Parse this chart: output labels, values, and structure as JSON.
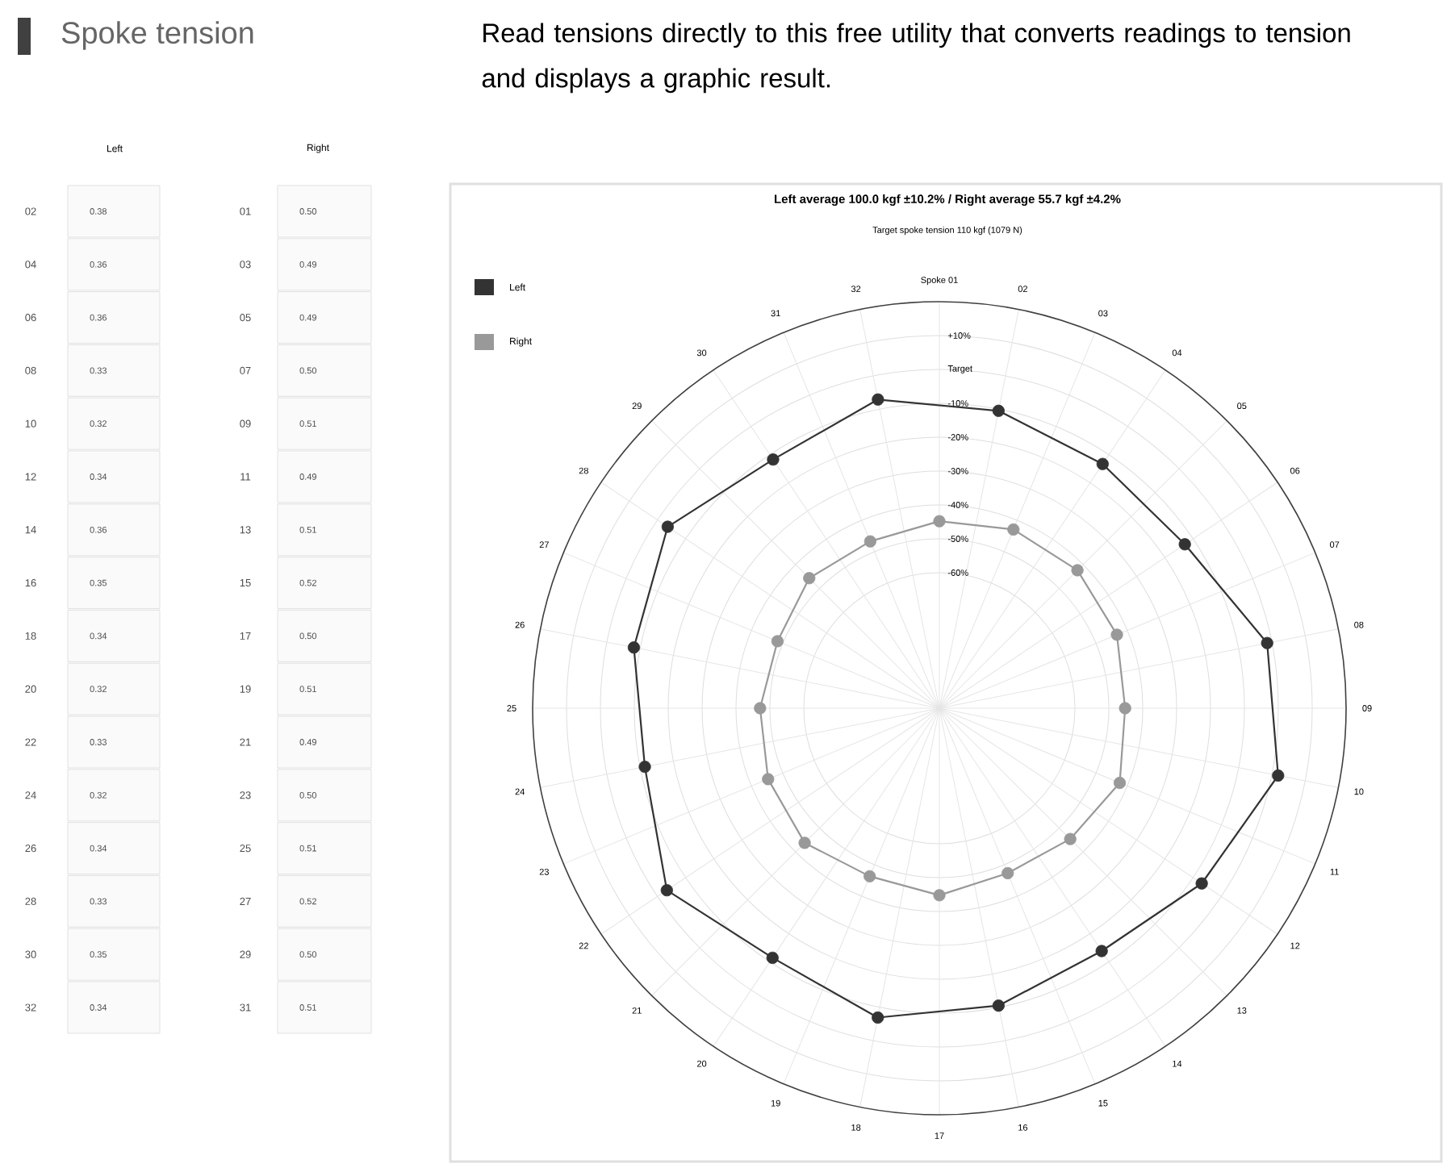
{
  "chart_data": {
    "type": "radar",
    "title": "Left average 100.0 kgf ±10.2% / Right average 55.7 kgf ±4.2%",
    "subtitle": "Target spoke tension 110 kgf (1079 N)",
    "categories": [
      "Spoke 01",
      "02",
      "03",
      "04",
      "05",
      "06",
      "07",
      "08",
      "09",
      "10",
      "11",
      "12",
      "13",
      "14",
      "15",
      "16",
      "17",
      "18",
      "19",
      "20",
      "21",
      "22",
      "23",
      "24",
      "25",
      "26",
      "27",
      "28",
      "29",
      "30",
      "31",
      "32"
    ],
    "series": [
      {
        "name": "Left",
        "color": "#333333",
        "values": [
          null,
          -10.5,
          null,
          -13.3,
          null,
          -12.9,
          null,
          -1.4,
          null,
          1.9,
          null,
          -6.9,
          null,
          -13.8,
          null,
          -10.5,
          null,
          -6.9,
          null,
          -11.4,
          null,
          -3.3,
          null,
          -11.4,
          null,
          -8.1,
          null,
          -3.6,
          null,
          -11.7,
          null,
          -7.1
        ]
      },
      {
        "name": "Right",
        "color": "#999999",
        "values": [
          -44.8,
          null,
          -42.9,
          null,
          -42.4,
          null,
          -43.3,
          null,
          -45.2,
          null,
          -42.4,
          null,
          -45.4,
          null,
          -47.3,
          null,
          -44.8,
          null,
          -46.3,
          null,
          -43.8,
          null,
          -45.3,
          null,
          -47.1,
          null,
          -48.3,
          null,
          -45.7,
          null,
          -46.7,
          null
        ]
      }
    ],
    "ylim": [
      -100,
      20
    ],
    "yticks": [
      {
        "value": -60,
        "label": "-60%"
      },
      {
        "value": -50,
        "label": "-50%"
      },
      {
        "value": -40,
        "label": "-40%"
      },
      {
        "value": -30,
        "label": "-30%"
      },
      {
        "value": -20,
        "label": "-20%"
      },
      {
        "value": -10,
        "label": "-10%"
      },
      {
        "value": 0,
        "label": "Target"
      },
      {
        "value": 10,
        "label": "+10%"
      }
    ],
    "grid": true,
    "legend": "top left",
    "marker": "circle",
    "line_style": "solid",
    "annotations": [
      "Spoke tension",
      "Read tensions directly to this free utility that converts readings to tension and displays a graphic result.",
      "Left",
      "Right",
      "02",
      "0.38",
      "01",
      "0.50",
      "04",
      "0.36",
      "03",
      "0.49",
      "06",
      "0.36",
      "05",
      "0.49",
      "08",
      "0.33",
      "07",
      "0.50",
      "10",
      "0.32",
      "09",
      "0.51",
      "12",
      "0.34",
      "11",
      "0.49",
      "14",
      "0.36",
      "13",
      "0.51",
      "16",
      "0.35",
      "15",
      "0.52",
      "18",
      "0.34",
      "17",
      "0.50",
      "20",
      "0.32",
      "19",
      "0.51",
      "22",
      "0.33",
      "21",
      "0.49",
      "24",
      "0.32",
      "23",
      "0.50",
      "26",
      "0.34",
      "25",
      "0.51",
      "28",
      "0.33",
      "27",
      "0.52",
      "30",
      "0.35",
      "29",
      "0.50",
      "32",
      "0.34",
      "31",
      "0.51"
    ]
  }
}
